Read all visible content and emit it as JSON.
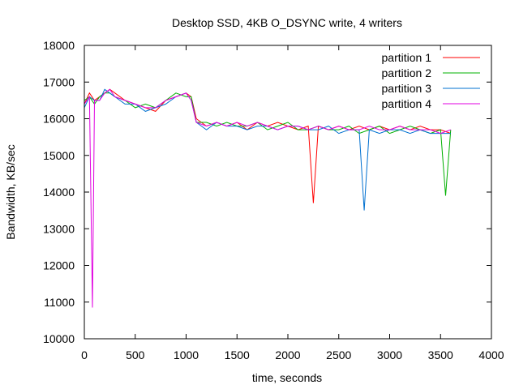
{
  "chart_data": {
    "type": "line",
    "title": "Desktop SSD, 4KB O_DSYNC write, 4 writers",
    "xlabel": "time, seconds",
    "ylabel": "Bandwidth, KB/sec",
    "xlim": [
      0,
      4000
    ],
    "ylim": [
      10000,
      18000
    ],
    "xticks": [
      "0",
      "500",
      "1000",
      "1500",
      "2000",
      "2500",
      "3000",
      "3500",
      "4000"
    ],
    "yticks": [
      "10000",
      "11000",
      "12000",
      "13000",
      "14000",
      "15000",
      "16000",
      "17000",
      "18000"
    ],
    "grid": false,
    "legend_position": "top-right",
    "series": [
      {
        "name": "partition 1",
        "color": "#ff0000",
        "x": [
          0,
          50,
          100,
          150,
          200,
          250,
          300,
          400,
          500,
          600,
          700,
          800,
          900,
          1000,
          1050,
          1100,
          1200,
          1300,
          1400,
          1500,
          1600,
          1700,
          1800,
          1900,
          2000,
          2100,
          2200,
          2250,
          2300,
          2400,
          2500,
          2600,
          2700,
          2800,
          2900,
          3000,
          3100,
          3200,
          3300,
          3400,
          3500,
          3600
        ],
        "y": [
          16400,
          16700,
          16500,
          16600,
          16700,
          16800,
          16700,
          16500,
          16400,
          16300,
          16200,
          16500,
          16600,
          16700,
          16600,
          16000,
          15800,
          15900,
          15800,
          15900,
          15700,
          15900,
          15800,
          15900,
          15800,
          15700,
          15800,
          13700,
          15800,
          15700,
          15800,
          15700,
          15800,
          15700,
          15800,
          15700,
          15800,
          15700,
          15800,
          15700,
          15700,
          15600
        ]
      },
      {
        "name": "partition 2",
        "color": "#00b000",
        "x": [
          0,
          50,
          100,
          150,
          200,
          250,
          300,
          400,
          500,
          600,
          700,
          800,
          900,
          1000,
          1050,
          1100,
          1200,
          1300,
          1400,
          1500,
          1600,
          1700,
          1800,
          1900,
          2000,
          2100,
          2200,
          2300,
          2400,
          2500,
          2600,
          2700,
          2800,
          2900,
          3000,
          3100,
          3200,
          3300,
          3400,
          3500,
          3550,
          3600
        ],
        "y": [
          16500,
          16600,
          16400,
          16600,
          16700,
          16700,
          16600,
          16500,
          16300,
          16400,
          16300,
          16500,
          16700,
          16600,
          16600,
          15900,
          15900,
          15800,
          15900,
          15800,
          15800,
          15900,
          15700,
          15800,
          15900,
          15700,
          15700,
          15800,
          15700,
          15700,
          15800,
          15600,
          15700,
          15800,
          15600,
          15700,
          15800,
          15700,
          15600,
          15700,
          13900,
          15700
        ]
      },
      {
        "name": "partition 3",
        "color": "#0070d0",
        "x": [
          0,
          50,
          100,
          150,
          200,
          250,
          300,
          400,
          500,
          600,
          700,
          800,
          900,
          1000,
          1050,
          1100,
          1200,
          1300,
          1400,
          1500,
          1600,
          1700,
          1800,
          1900,
          2000,
          2100,
          2200,
          2300,
          2400,
          2500,
          2600,
          2700,
          2750,
          2800,
          2900,
          3000,
          3100,
          3200,
          3300,
          3400,
          3500,
          3600
        ],
        "y": [
          16300,
          16600,
          16500,
          16500,
          16800,
          16700,
          16600,
          16400,
          16400,
          16200,
          16300,
          16400,
          16600,
          16700,
          16500,
          15900,
          15700,
          15900,
          15800,
          15800,
          15700,
          15800,
          15800,
          15700,
          15800,
          15800,
          15700,
          15700,
          15800,
          15600,
          15700,
          15700,
          13500,
          15700,
          15600,
          15700,
          15700,
          15600,
          15700,
          15600,
          15600,
          15600
        ]
      },
      {
        "name": "partition 4",
        "color": "#e000e0",
        "x": [
          0,
          50,
          80,
          100,
          150,
          200,
          250,
          300,
          400,
          500,
          600,
          700,
          800,
          900,
          1000,
          1050,
          1100,
          1200,
          1300,
          1400,
          1500,
          1600,
          1700,
          1800,
          1900,
          2000,
          2100,
          2200,
          2300,
          2400,
          2500,
          2600,
          2700,
          2800,
          2900,
          3000,
          3100,
          3200,
          3300,
          3400,
          3500,
          3600
        ],
        "y": [
          16400,
          16600,
          10850,
          16500,
          16500,
          16700,
          16800,
          16600,
          16500,
          16400,
          16300,
          16300,
          16500,
          16600,
          16700,
          16500,
          15900,
          15800,
          15900,
          15800,
          15900,
          15800,
          15900,
          15800,
          15700,
          15800,
          15800,
          15700,
          15800,
          15700,
          15800,
          15700,
          15700,
          15800,
          15700,
          15700,
          15800,
          15700,
          15700,
          15700,
          15600,
          15700
        ]
      }
    ]
  }
}
